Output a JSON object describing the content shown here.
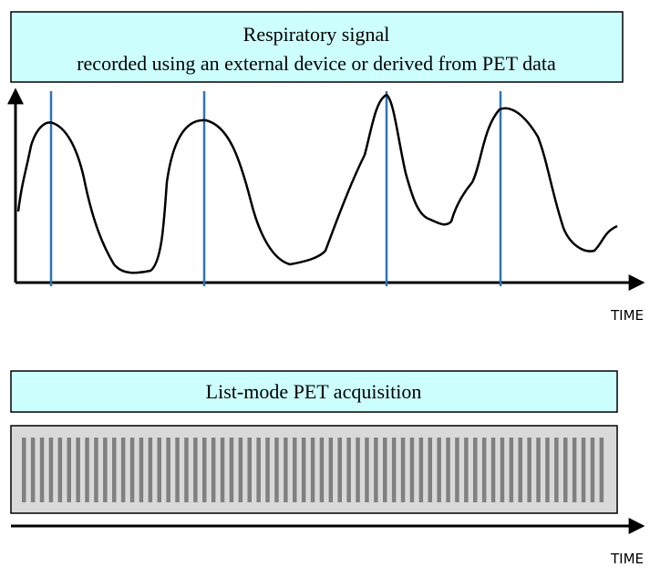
{
  "signal_panel": {
    "title": "Respiratory signal",
    "subtitle": "recorded using an external device or derived from PET data",
    "axis_label": "TIME"
  },
  "acquisition_panel": {
    "title": "List-mode PET acquisition",
    "axis_label": "TIME"
  }
}
